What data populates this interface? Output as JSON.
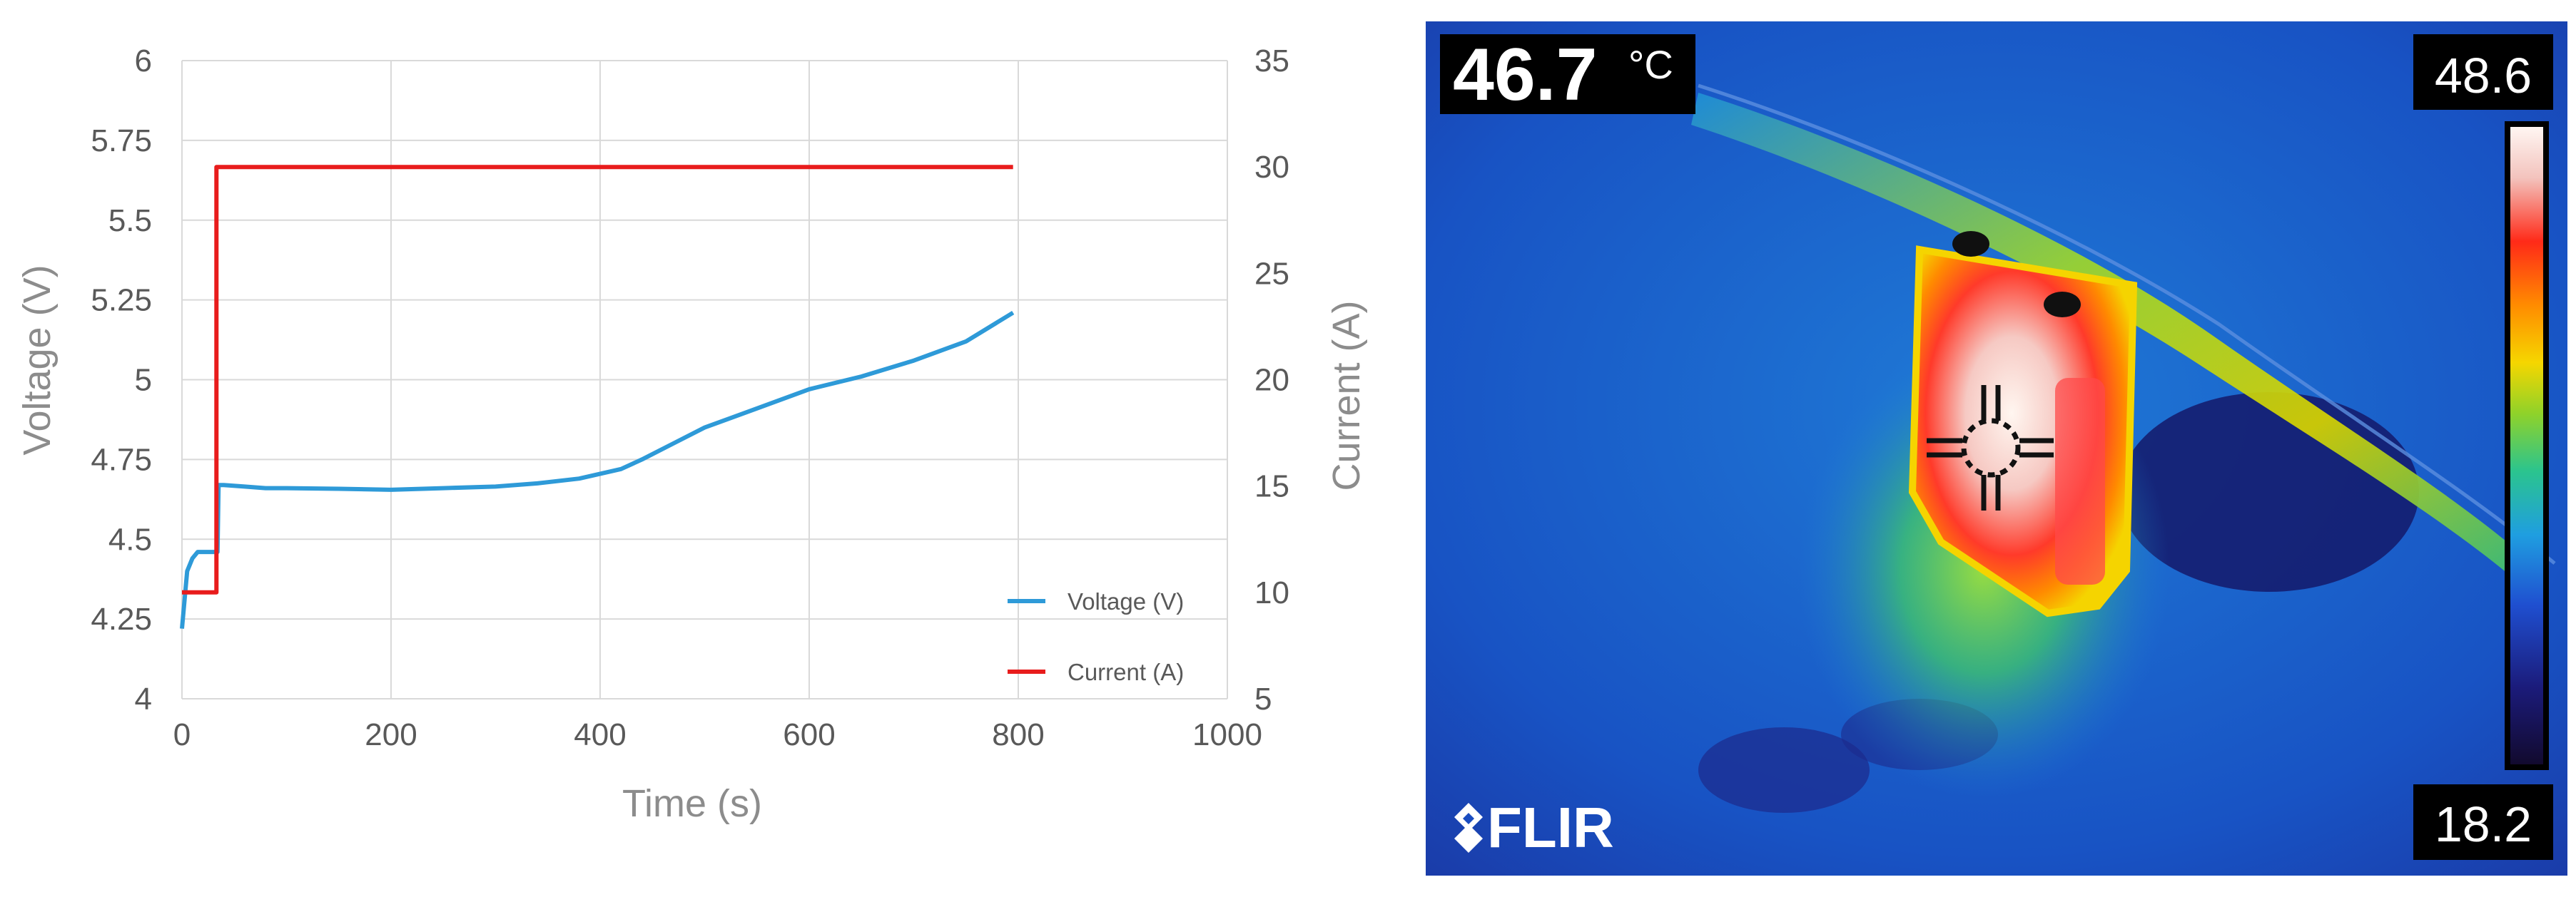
{
  "chart_data": [
    {
      "type": "line",
      "title": "",
      "xlabel": "Time (s)",
      "ylabel": "Voltage (V)",
      "y2label": "Current (A)",
      "xlim": [
        0,
        1000
      ],
      "ylim": [
        4,
        6
      ],
      "y2lim": [
        5,
        35
      ],
      "xticks": [
        "0",
        "200",
        "400",
        "600",
        "800",
        "1000"
      ],
      "yticks": [
        "4",
        "4.25",
        "4.5",
        "4.75",
        "5",
        "5.25",
        "5.5",
        "5.75",
        "6"
      ],
      "y2ticks": [
        "5",
        "10",
        "15",
        "20",
        "25",
        "30",
        "35"
      ],
      "grid": true,
      "legend_position": "bottom-right",
      "series": [
        {
          "name": "Voltage (V)",
          "axis": "left",
          "color": "#2e9ad8",
          "x": [
            0,
            5,
            10,
            15,
            20,
            25,
            30,
            34,
            35,
            40,
            60,
            80,
            100,
            150,
            200,
            250,
            300,
            340,
            380,
            420,
            440,
            470,
            500,
            550,
            600,
            650,
            700,
            750,
            790,
            795
          ],
          "y": [
            4.22,
            4.4,
            4.44,
            4.46,
            4.46,
            4.46,
            4.46,
            4.46,
            4.67,
            4.67,
            4.665,
            4.66,
            4.66,
            4.658,
            4.655,
            4.66,
            4.665,
            4.675,
            4.69,
            4.72,
            4.75,
            4.8,
            4.85,
            4.91,
            4.97,
            5.01,
            5.06,
            5.12,
            5.2,
            5.21
          ]
        },
        {
          "name": "Current (A)",
          "axis": "right",
          "color": "#e81c1c",
          "x": [
            0,
            33,
            33,
            795
          ],
          "y": [
            10,
            10,
            30,
            30
          ]
        }
      ]
    },
    {
      "type": "heatmap",
      "title": "",
      "spot_temperature": "46.7",
      "unit": "°C",
      "scale_max": "48.6",
      "scale_min": "18.2",
      "brand": "FLIR",
      "colormap": [
        "#1a1140",
        "#2a1f8c",
        "#1f5fd8",
        "#1fa0e0",
        "#2dc28a",
        "#8ed12a",
        "#f3d200",
        "#ff8a00",
        "#ff2a1a",
        "#f4c8c0",
        "#fff4ef"
      ]
    }
  ]
}
